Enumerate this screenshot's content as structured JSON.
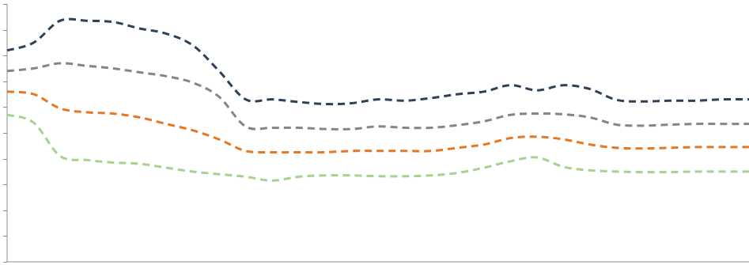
{
  "chart_data": {
    "type": "line",
    "title": "",
    "xlabel": "",
    "ylabel": "",
    "ylim": [
      0,
      10
    ],
    "yticks": [
      0,
      1,
      2,
      3,
      4,
      5,
      6,
      7,
      8,
      9,
      10
    ],
    "grid": false,
    "legend": "none",
    "line_style": "dashed",
    "x": [
      0,
      1,
      2,
      3,
      4,
      5,
      6,
      7,
      8,
      9,
      10,
      11,
      12,
      13,
      14,
      15,
      16,
      17,
      18,
      19,
      20,
      21,
      22,
      23,
      24,
      25,
      26,
      27,
      28
    ],
    "series": [
      {
        "color": "#2e4057",
        "values": [
          8.2,
          8.5,
          9.35,
          9.35,
          9.3,
          9.05,
          8.85,
          8.4,
          7.4,
          6.3,
          6.3,
          6.2,
          6.12,
          6.15,
          6.3,
          6.25,
          6.35,
          6.5,
          6.6,
          6.85,
          6.65,
          6.85,
          6.7,
          6.28,
          6.22,
          6.25,
          6.25,
          6.3,
          6.3
        ]
      },
      {
        "color": "#858585",
        "values": [
          7.4,
          7.5,
          7.7,
          7.6,
          7.5,
          7.35,
          7.2,
          6.95,
          6.4,
          5.25,
          5.2,
          5.2,
          5.15,
          5.15,
          5.25,
          5.2,
          5.2,
          5.3,
          5.45,
          5.7,
          5.75,
          5.72,
          5.6,
          5.32,
          5.28,
          5.32,
          5.35,
          5.35,
          5.35
        ]
      },
      {
        "color": "#e87722",
        "values": [
          6.6,
          6.5,
          5.95,
          5.8,
          5.75,
          5.6,
          5.35,
          5.1,
          4.75,
          4.3,
          4.25,
          4.25,
          4.25,
          4.3,
          4.3,
          4.3,
          4.3,
          4.42,
          4.55,
          4.8,
          4.85,
          4.75,
          4.55,
          4.42,
          4.4,
          4.42,
          4.45,
          4.45,
          4.45
        ]
      },
      {
        "color": "#a9d18e",
        "values": [
          5.7,
          5.4,
          4.1,
          3.95,
          3.85,
          3.8,
          3.65,
          3.5,
          3.4,
          3.3,
          3.15,
          3.3,
          3.35,
          3.35,
          3.32,
          3.32,
          3.35,
          3.45,
          3.65,
          3.9,
          4.05,
          3.68,
          3.55,
          3.5,
          3.48,
          3.48,
          3.5,
          3.5,
          3.5
        ]
      }
    ]
  }
}
